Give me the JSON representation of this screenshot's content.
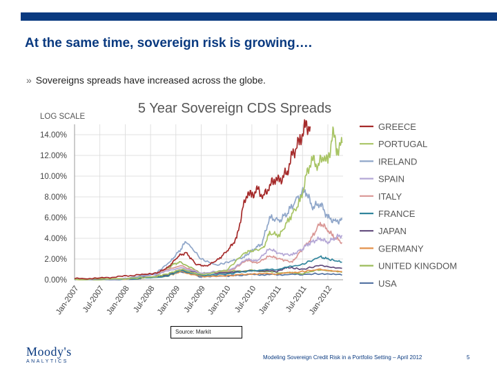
{
  "slide": {
    "title": "At the same time, sovereign risk is growing….",
    "bullet": "Sovereigns spreads have increased across the globe.",
    "bullet_mark": "»",
    "source": "Source: Markit",
    "footer": "Modeling Sovereign Credit Risk in a Portfolio Setting – April 2012",
    "page": "5",
    "logo_name": "Moody's",
    "logo_sub": "ANALYTICS"
  },
  "colors": {
    "accent": "#0a3a80"
  },
  "chart_data": {
    "type": "line",
    "title": "5 Year Sovereign CDS Spreads",
    "scale_note": "LOG SCALE",
    "x_ticks": [
      "Jan-2007",
      "Jul-2007",
      "Jan-2008",
      "Jul-2008",
      "Jan-2009",
      "Jul-2009",
      "Jan-2010",
      "Jul-2010",
      "Jan-2011",
      "Jul-2011",
      "Jan-2012"
    ],
    "x_range": [
      2007.0,
      2012.3
    ],
    "y_ticks": [
      "0.00%",
      "2.00%",
      "4.00%",
      "6.00%",
      "8.00%",
      "10.00%",
      "12.00%",
      "14.00%"
    ],
    "ylim": [
      0,
      15
    ],
    "series": [
      {
        "name": "GREECE",
        "color": "#a52a2a",
        "points": [
          [
            2007.0,
            0.1
          ],
          [
            2007.5,
            0.15
          ],
          [
            2007.9,
            0.3
          ],
          [
            2008.3,
            0.5
          ],
          [
            2008.6,
            0.6
          ],
          [
            2008.85,
            1.2
          ],
          [
            2009.05,
            2.3
          ],
          [
            2009.2,
            2.6
          ],
          [
            2009.4,
            1.5
          ],
          [
            2009.6,
            1.3
          ],
          [
            2009.85,
            2.0
          ],
          [
            2010.05,
            3.0
          ],
          [
            2010.2,
            4.0
          ],
          [
            2010.33,
            7.0
          ],
          [
            2010.42,
            8.5
          ],
          [
            2010.5,
            8.0
          ],
          [
            2010.6,
            8.8
          ],
          [
            2010.72,
            8.0
          ],
          [
            2010.85,
            9.0
          ],
          [
            2010.95,
            9.8
          ],
          [
            2011.05,
            9.5
          ],
          [
            2011.2,
            10.5
          ],
          [
            2011.3,
            12.0
          ],
          [
            2011.45,
            13.5
          ],
          [
            2011.55,
            14.7
          ],
          [
            2011.65,
            14.8
          ]
        ]
      },
      {
        "name": "PORTUGAL",
        "color": "#a8c464",
        "points": [
          [
            2007.0,
            0.05
          ],
          [
            2008.0,
            0.1
          ],
          [
            2008.6,
            0.3
          ],
          [
            2008.85,
            0.6
          ],
          [
            2009.1,
            1.0
          ],
          [
            2009.5,
            0.5
          ],
          [
            2010.0,
            0.9
          ],
          [
            2010.35,
            2.6
          ],
          [
            2010.5,
            2.8
          ],
          [
            2010.72,
            3.0
          ],
          [
            2010.85,
            4.5
          ],
          [
            2011.05,
            4.3
          ],
          [
            2011.25,
            6.0
          ],
          [
            2011.45,
            7.5
          ],
          [
            2011.58,
            10.0
          ],
          [
            2011.68,
            11.7
          ],
          [
            2011.8,
            11.0
          ],
          [
            2011.92,
            12.0
          ],
          [
            2012.0,
            11.2
          ],
          [
            2012.1,
            14.3
          ],
          [
            2012.18,
            12.5
          ],
          [
            2012.28,
            13.2
          ]
        ]
      },
      {
        "name": "IRELAND",
        "color": "#8fa6c9",
        "points": [
          [
            2007.0,
            0.05
          ],
          [
            2008.0,
            0.1
          ],
          [
            2008.6,
            0.6
          ],
          [
            2008.9,
            1.8
          ],
          [
            2009.1,
            3.0
          ],
          [
            2009.2,
            3.7
          ],
          [
            2009.5,
            2.0
          ],
          [
            2009.8,
            1.4
          ],
          [
            2010.1,
            1.8
          ],
          [
            2010.35,
            2.2
          ],
          [
            2010.55,
            3.0
          ],
          [
            2010.7,
            3.5
          ],
          [
            2010.85,
            6.0
          ],
          [
            2011.05,
            5.7
          ],
          [
            2011.2,
            6.5
          ],
          [
            2011.4,
            7.8
          ],
          [
            2011.55,
            8.7
          ],
          [
            2011.7,
            7.0
          ],
          [
            2011.85,
            7.4
          ],
          [
            2012.0,
            6.0
          ],
          [
            2012.15,
            5.6
          ],
          [
            2012.28,
            5.8
          ]
        ]
      },
      {
        "name": "SPAIN",
        "color": "#b4a7d6",
        "points": [
          [
            2007.0,
            0.05
          ],
          [
            2008.0,
            0.1
          ],
          [
            2008.6,
            0.5
          ],
          [
            2009.1,
            1.2
          ],
          [
            2009.5,
            0.6
          ],
          [
            2010.1,
            1.0
          ],
          [
            2010.4,
            2.0
          ],
          [
            2010.6,
            1.8
          ],
          [
            2010.85,
            3.0
          ],
          [
            2011.05,
            2.5
          ],
          [
            2011.3,
            2.4
          ],
          [
            2011.5,
            3.0
          ],
          [
            2011.62,
            3.5
          ],
          [
            2011.85,
            4.0
          ],
          [
            2012.0,
            3.6
          ],
          [
            2012.15,
            4.1
          ],
          [
            2012.28,
            4.3
          ]
        ]
      },
      {
        "name": "ITALY",
        "color": "#d99694",
        "points": [
          [
            2007.0,
            0.05
          ],
          [
            2008.0,
            0.1
          ],
          [
            2008.6,
            0.6
          ],
          [
            2009.1,
            1.4
          ],
          [
            2009.5,
            0.6
          ],
          [
            2010.1,
            0.9
          ],
          [
            2010.4,
            1.9
          ],
          [
            2010.6,
            1.6
          ],
          [
            2010.85,
            2.3
          ],
          [
            2011.05,
            2.0
          ],
          [
            2011.3,
            1.7
          ],
          [
            2011.5,
            3.0
          ],
          [
            2011.65,
            3.8
          ],
          [
            2011.85,
            5.5
          ],
          [
            2012.0,
            4.8
          ],
          [
            2012.1,
            4.2
          ],
          [
            2012.28,
            3.6
          ]
        ]
      },
      {
        "name": "FRANCE",
        "color": "#31859c",
        "points": [
          [
            2007.0,
            0.02
          ],
          [
            2008.0,
            0.05
          ],
          [
            2008.8,
            0.3
          ],
          [
            2009.1,
            0.9
          ],
          [
            2009.5,
            0.4
          ],
          [
            2010.1,
            0.6
          ],
          [
            2010.5,
            0.9
          ],
          [
            2011.0,
            1.0
          ],
          [
            2011.5,
            1.5
          ],
          [
            2011.85,
            2.2
          ],
          [
            2012.0,
            2.0
          ],
          [
            2012.28,
            1.7
          ]
        ]
      },
      {
        "name": "JAPAN",
        "color": "#604a7b",
        "points": [
          [
            2007.0,
            0.02
          ],
          [
            2008.0,
            0.05
          ],
          [
            2008.8,
            0.4
          ],
          [
            2009.1,
            1.0
          ],
          [
            2009.5,
            0.6
          ],
          [
            2010.1,
            0.7
          ],
          [
            2010.5,
            0.9
          ],
          [
            2011.0,
            0.8
          ],
          [
            2011.2,
            1.2
          ],
          [
            2011.5,
            1.0
          ],
          [
            2011.85,
            1.4
          ],
          [
            2012.28,
            1.1
          ]
        ]
      },
      {
        "name": "GERMANY",
        "color": "#e3904a",
        "points": [
          [
            2007.0,
            0.02
          ],
          [
            2008.0,
            0.05
          ],
          [
            2008.8,
            0.3
          ],
          [
            2009.1,
            0.8
          ],
          [
            2009.5,
            0.3
          ],
          [
            2010.1,
            0.4
          ],
          [
            2010.5,
            0.6
          ],
          [
            2011.0,
            0.55
          ],
          [
            2011.5,
            0.8
          ],
          [
            2011.85,
            1.0
          ],
          [
            2012.28,
            0.8
          ]
        ]
      },
      {
        "name": "UNITED KINGDOM",
        "color": "#9bbb59",
        "points": [
          [
            2007.0,
            0.02
          ],
          [
            2008.0,
            0.05
          ],
          [
            2008.6,
            0.3
          ],
          [
            2008.95,
            1.5
          ],
          [
            2009.1,
            1.7
          ],
          [
            2009.5,
            0.6
          ],
          [
            2010.1,
            0.8
          ],
          [
            2010.5,
            0.9
          ],
          [
            2011.0,
            0.7
          ],
          [
            2011.5,
            0.6
          ],
          [
            2011.85,
            1.0
          ],
          [
            2012.28,
            0.7
          ]
        ]
      },
      {
        "name": "USA",
        "color": "#4f6fa0",
        "points": [
          [
            2007.0,
            0.01
          ],
          [
            2008.0,
            0.03
          ],
          [
            2008.8,
            0.4
          ],
          [
            2009.1,
            0.8
          ],
          [
            2009.5,
            0.3
          ],
          [
            2010.1,
            0.4
          ],
          [
            2010.5,
            0.5
          ],
          [
            2011.0,
            0.5
          ],
          [
            2011.5,
            0.5
          ],
          [
            2011.85,
            0.6
          ],
          [
            2012.28,
            0.45
          ]
        ]
      }
    ]
  }
}
